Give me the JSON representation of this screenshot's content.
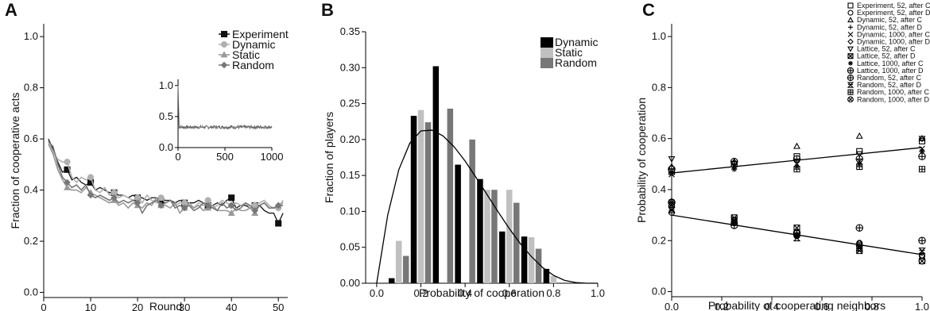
{
  "chart_data": [
    {
      "panel": "A",
      "type": "line",
      "xlabel": "Round",
      "ylabel": "Fraction of cooperative acts",
      "xlim": [
        0,
        52
      ],
      "ylim": [
        -0.02,
        1.05
      ],
      "x_ticks": [
        0,
        10,
        20,
        30,
        40,
        50
      ],
      "y_ticks": [
        0.0,
        0.2,
        0.4,
        0.6,
        0.8,
        1.0
      ],
      "legend_position": "top-right",
      "series": [
        {
          "name": "Experiment",
          "color": "#111111",
          "marker": "square",
          "x": [
            1,
            2,
            3,
            4,
            5,
            6,
            7,
            8,
            9,
            10,
            11,
            12,
            13,
            14,
            15,
            16,
            17,
            18,
            19,
            20,
            21,
            22,
            23,
            24,
            25,
            26,
            27,
            28,
            29,
            30,
            31,
            32,
            33,
            34,
            35,
            36,
            37,
            38,
            39,
            40,
            41,
            42,
            43,
            44,
            45,
            46,
            47,
            48,
            49,
            50,
            51
          ],
          "y": [
            0.6,
            0.56,
            0.51,
            0.47,
            0.48,
            0.44,
            0.45,
            0.43,
            0.42,
            0.43,
            0.4,
            0.41,
            0.4,
            0.39,
            0.39,
            0.38,
            0.38,
            0.37,
            0.38,
            0.37,
            0.37,
            0.36,
            0.37,
            0.37,
            0.36,
            0.36,
            0.36,
            0.35,
            0.36,
            0.35,
            0.35,
            0.35,
            0.36,
            0.35,
            0.34,
            0.34,
            0.35,
            0.34,
            0.36,
            0.37,
            0.33,
            0.34,
            0.34,
            0.33,
            0.34,
            0.34,
            0.32,
            0.31,
            0.31,
            0.27,
            0.31
          ]
        },
        {
          "name": "Dynamic",
          "color": "#b0b0b0",
          "marker": "circle",
          "x": [
            1,
            2,
            3,
            4,
            5,
            6,
            7,
            8,
            9,
            10,
            11,
            12,
            13,
            14,
            15,
            16,
            17,
            18,
            19,
            20,
            21,
            22,
            23,
            24,
            25,
            26,
            27,
            28,
            29,
            30,
            31,
            32,
            33,
            34,
            35,
            36,
            37,
            38,
            39,
            40,
            41,
            42,
            43,
            44,
            45,
            46,
            47,
            48,
            49,
            50,
            51
          ],
          "y": [
            0.59,
            0.55,
            0.52,
            0.51,
            0.51,
            0.45,
            0.43,
            0.45,
            0.44,
            0.45,
            0.4,
            0.39,
            0.41,
            0.38,
            0.39,
            0.37,
            0.38,
            0.37,
            0.36,
            0.37,
            0.35,
            0.38,
            0.36,
            0.35,
            0.37,
            0.35,
            0.36,
            0.34,
            0.35,
            0.35,
            0.34,
            0.33,
            0.35,
            0.34,
            0.36,
            0.33,
            0.34,
            0.36,
            0.35,
            0.34,
            0.35,
            0.34,
            0.35,
            0.33,
            0.34,
            0.35,
            0.36,
            0.34,
            0.33,
            0.33,
            0.36
          ]
        },
        {
          "name": "Static",
          "color": "#999999",
          "marker": "triangle",
          "x": [
            1,
            2,
            3,
            4,
            5,
            6,
            7,
            8,
            9,
            10,
            11,
            12,
            13,
            14,
            15,
            16,
            17,
            18,
            19,
            20,
            21,
            22,
            23,
            24,
            25,
            26,
            27,
            28,
            29,
            30,
            31,
            32,
            33,
            34,
            35,
            36,
            37,
            38,
            39,
            40,
            41,
            42,
            43,
            44,
            45,
            46,
            47,
            48,
            49,
            50,
            51
          ],
          "y": [
            0.58,
            0.54,
            0.48,
            0.44,
            0.41,
            0.4,
            0.4,
            0.39,
            0.41,
            0.39,
            0.38,
            0.37,
            0.36,
            0.35,
            0.36,
            0.34,
            0.35,
            0.33,
            0.35,
            0.34,
            0.33,
            0.35,
            0.34,
            0.37,
            0.34,
            0.34,
            0.33,
            0.35,
            0.31,
            0.33,
            0.35,
            0.33,
            0.34,
            0.32,
            0.33,
            0.34,
            0.32,
            0.32,
            0.32,
            0.31,
            0.33,
            0.32,
            0.32,
            0.33,
            0.31,
            0.34,
            0.35,
            0.33,
            0.33,
            0.34,
            0.35
          ]
        },
        {
          "name": "Random",
          "color": "#777777",
          "marker": "diamond",
          "x": [
            1,
            2,
            3,
            4,
            5,
            6,
            7,
            8,
            9,
            10,
            11,
            12,
            13,
            14,
            15,
            16,
            17,
            18,
            19,
            20,
            21,
            22,
            23,
            24,
            25,
            26,
            27,
            28,
            29,
            30,
            31,
            32,
            33,
            34,
            35,
            36,
            37,
            38,
            39,
            40,
            41,
            42,
            43,
            44,
            45,
            46,
            47,
            48,
            49,
            50,
            51
          ],
          "y": [
            0.59,
            0.57,
            0.5,
            0.45,
            0.43,
            0.41,
            0.42,
            0.4,
            0.42,
            0.38,
            0.37,
            0.38,
            0.37,
            0.36,
            0.37,
            0.35,
            0.36,
            0.35,
            0.36,
            0.35,
            0.31,
            0.34,
            0.35,
            0.36,
            0.34,
            0.35,
            0.36,
            0.33,
            0.34,
            0.33,
            0.34,
            0.32,
            0.33,
            0.35,
            0.34,
            0.33,
            0.32,
            0.35,
            0.33,
            0.34,
            0.32,
            0.33,
            0.35,
            0.34,
            0.32,
            0.34,
            0.35,
            0.33,
            0.33,
            0.34,
            0.34
          ]
        }
      ],
      "inset": {
        "xlim": [
          0,
          1000
        ],
        "ylim": [
          0.0,
          1.1
        ],
        "x_ticks": [
          0,
          500,
          1000
        ],
        "y_ticks": [
          0.0,
          0.5,
          1.0
        ],
        "series_color": "#666666",
        "steady_value": 0.33
      }
    },
    {
      "panel": "B",
      "type": "bar",
      "xlabel": "Probability of cooperation",
      "ylabel": "Fraction of players",
      "xlim": [
        -0.05,
        1.0
      ],
      "ylim": [
        0.0,
        0.35
      ],
      "x_ticks": [
        0.0,
        0.2,
        0.4,
        0.6,
        0.8,
        1.0
      ],
      "y_ticks": [
        0.0,
        0.05,
        0.1,
        0.15,
        0.2,
        0.25,
        0.3,
        0.35
      ],
      "categories": [
        0.1,
        0.2,
        0.3,
        0.4,
        0.5,
        0.6,
        0.7,
        0.8
      ],
      "legend_position": "top-right",
      "series": [
        {
          "name": "Dynamic",
          "color": "#000000",
          "values": [
            0.007,
            0.233,
            0.302,
            0.165,
            0.145,
            0.072,
            0.065,
            0.02
          ]
        },
        {
          "name": "Static",
          "color": "#c0c0c0",
          "values": [
            0.059,
            0.241,
            0.0,
            0.0,
            0.13,
            0.13,
            0.064,
            0.01
          ]
        },
        {
          "name": "Random",
          "color": "#777777",
          "values": [
            0.038,
            0.224,
            0.243,
            0.2,
            0.13,
            0.112,
            0.048,
            0.0
          ]
        }
      ],
      "fit_curve": {
        "color": "#000000",
        "x": [
          0.0,
          0.05,
          0.1,
          0.15,
          0.2,
          0.25,
          0.3,
          0.35,
          0.4,
          0.45,
          0.5,
          0.55,
          0.6,
          0.65,
          0.7,
          0.75,
          0.8,
          0.85,
          0.9,
          0.95,
          1.0
        ],
        "y": [
          0.0,
          0.095,
          0.158,
          0.195,
          0.212,
          0.213,
          0.205,
          0.19,
          0.17,
          0.147,
          0.123,
          0.099,
          0.076,
          0.055,
          0.037,
          0.022,
          0.011,
          0.004,
          0.001,
          0.0,
          0.0
        ]
      }
    },
    {
      "panel": "C",
      "type": "scatter",
      "xlabel": "Probability of cooperating neighbors",
      "ylabel": "Probability of cooperation",
      "xlim": [
        0.0,
        1.0
      ],
      "ylim": [
        -0.02,
        1.05
      ],
      "x_ticks": [
        0.0,
        0.2,
        0.4,
        0.6,
        0.8,
        1.0
      ],
      "y_ticks": [
        0.0,
        0.2,
        0.4,
        0.6,
        0.8,
        1.0
      ],
      "legend_position": "top-right",
      "x": [
        0.0,
        0.25,
        0.5,
        0.75,
        1.0
      ],
      "series": [
        {
          "name": "Experiment, 52, after C",
          "marker": "square",
          "y": [
            0.47,
            0.5,
            0.53,
            0.55,
            0.59
          ]
        },
        {
          "name": "Experiment, 52, after D",
          "marker": "circle",
          "y": [
            0.31,
            0.28,
            0.23,
            0.19,
            0.14
          ]
        },
        {
          "name": "Dynamic, 52, after C",
          "marker": "triangle",
          "y": [
            0.49,
            0.51,
            0.57,
            0.61,
            0.6
          ]
        },
        {
          "name": "Dynamic, 52, after D",
          "marker": "plus",
          "y": [
            0.36,
            0.27,
            0.22,
            0.18,
            0.15
          ]
        },
        {
          "name": "Dynamic, 1000, after C",
          "marker": "x",
          "y": [
            0.46,
            0.49,
            0.5,
            0.51,
            0.56
          ]
        },
        {
          "name": "Dynamic, 1000, after D",
          "marker": "diamond",
          "y": [
            0.33,
            0.27,
            0.22,
            0.19,
            0.14
          ]
        },
        {
          "name": "Lattice, 52, after C",
          "marker": "triangle-down",
          "y": [
            0.52,
            0.5,
            0.51,
            0.54,
            0.6
          ]
        },
        {
          "name": "Lattice, 52, after D",
          "marker": "square-x",
          "y": [
            0.34,
            0.29,
            0.25,
            0.16,
            0.12
          ]
        },
        {
          "name": "Lattice, 1000, after C",
          "marker": "asterisk",
          "y": [
            0.47,
            0.48,
            0.49,
            0.5,
            0.55
          ]
        },
        {
          "name": "Lattice, 1000, after D",
          "marker": "circle-plus",
          "y": [
            0.35,
            0.26,
            0.23,
            0.25,
            0.2
          ]
        },
        {
          "name": "Random, 52, after C",
          "marker": "circle-plus2",
          "y": [
            0.48,
            0.51,
            0.52,
            0.52,
            0.53
          ]
        },
        {
          "name": "Random, 52, after D",
          "marker": "hourglass",
          "y": [
            0.32,
            0.28,
            0.21,
            0.17,
            0.16
          ]
        },
        {
          "name": "Random, 1000, after C",
          "marker": "square-plus",
          "y": [
            0.47,
            0.5,
            0.48,
            0.49,
            0.48
          ]
        },
        {
          "name": "Random, 1000, after D",
          "marker": "circle-x",
          "y": [
            0.35,
            0.27,
            0.22,
            0.18,
            0.12
          ]
        }
      ],
      "fits": [
        {
          "x": [
            0.0,
            1.0
          ],
          "y": [
            0.465,
            0.565
          ]
        },
        {
          "x": [
            0.0,
            1.0
          ],
          "y": [
            0.3,
            0.145
          ]
        }
      ]
    }
  ]
}
